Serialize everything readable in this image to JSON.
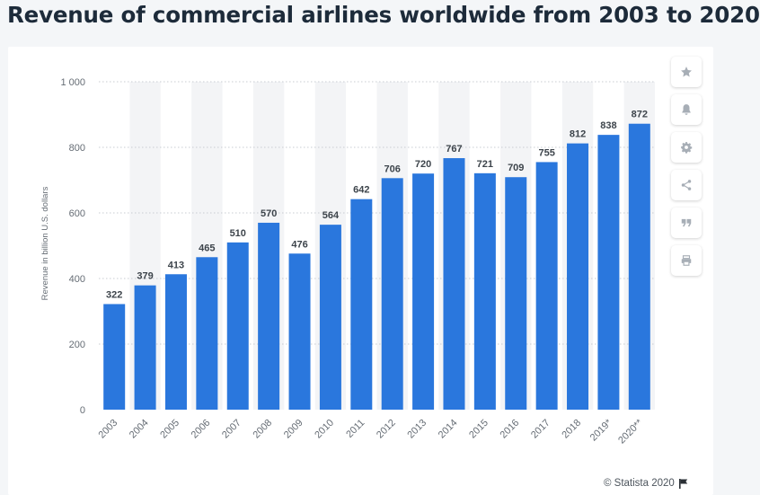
{
  "page": {
    "title": "Revenue of commercial airlines worldwide from 2003 to 2020"
  },
  "toolbar": {
    "items": [
      {
        "name": "favorite",
        "icon": "star-icon"
      },
      {
        "name": "notification",
        "icon": "bell-icon"
      },
      {
        "name": "settings",
        "icon": "gear-icon"
      },
      {
        "name": "share",
        "icon": "share-icon"
      },
      {
        "name": "cite",
        "icon": "quote-icon"
      },
      {
        "name": "print",
        "icon": "print-icon"
      }
    ]
  },
  "credit": {
    "text": "© Statista 2020",
    "icon": "flag-icon"
  },
  "colors": {
    "bar": "#2a77dd",
    "band": "#f3f4f6",
    "grid": "#c8cdd2",
    "label": "#3d444b",
    "axis_text": "#666d75"
  },
  "chart_data": {
    "type": "bar",
    "title": "",
    "xlabel": "",
    "ylabel": "Revenue in billion U.S. dollars",
    "categories": [
      "2003",
      "2004",
      "2005",
      "2006",
      "2007",
      "2008",
      "2009",
      "2010",
      "2011",
      "2012",
      "2013",
      "2014",
      "2015",
      "2016",
      "2017",
      "2018",
      "2019*",
      "2020**"
    ],
    "values": [
      322,
      379,
      413,
      465,
      510,
      570,
      476,
      564,
      642,
      706,
      720,
      767,
      721,
      709,
      755,
      812,
      838,
      872
    ],
    "value_labels": [
      "322",
      "379",
      "413",
      "465",
      "510",
      "570",
      "476",
      "564",
      "642",
      "706",
      "720",
      "767",
      "721",
      "709",
      "755",
      "812",
      "838",
      "872"
    ],
    "ylim": [
      0,
      1000
    ],
    "yticks": [
      0,
      200,
      400,
      600,
      800,
      1000
    ],
    "ytick_labels": [
      "0",
      "200",
      "400",
      "600",
      "800",
      "1 000"
    ],
    "grid": true,
    "legend": "none"
  }
}
